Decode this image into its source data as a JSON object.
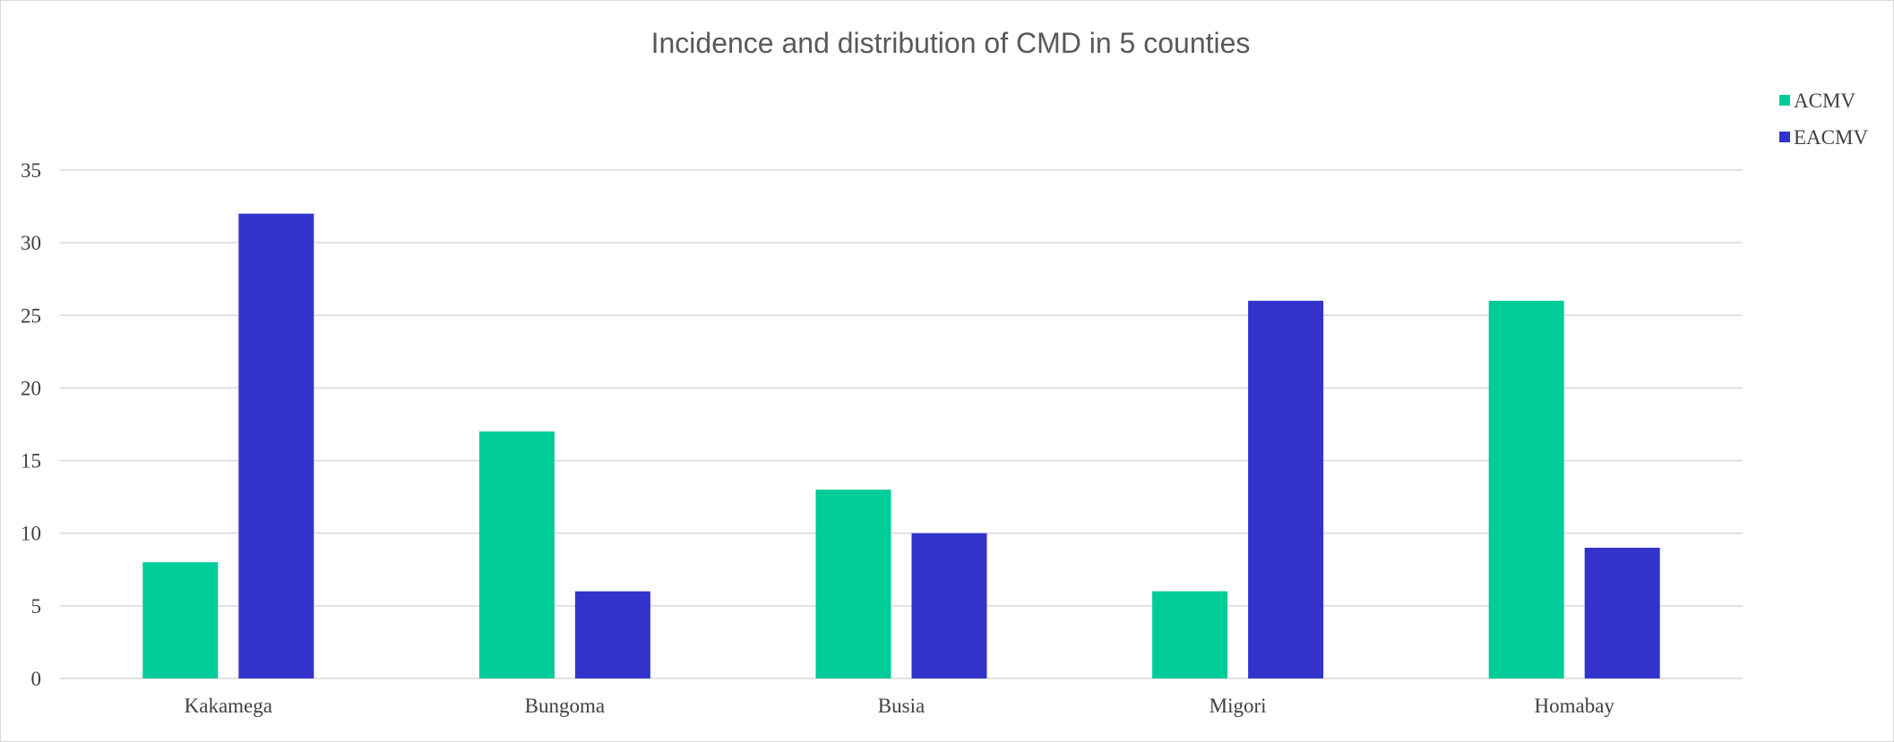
{
  "chart_data": {
    "type": "bar",
    "title": "Incidence and distribution of CMD in 5 counties",
    "xlabel": "",
    "ylabel": "",
    "categories": [
      "Kakamega",
      "Bungoma",
      "Busia",
      "Migori",
      "Homabay"
    ],
    "series": [
      {
        "name": "ACMV",
        "color": "#00CC99",
        "values": [
          8,
          17,
          13,
          6,
          26
        ]
      },
      {
        "name": "EACMV",
        "color": "#3333CC",
        "values": [
          32,
          6,
          10,
          26,
          9
        ]
      }
    ],
    "ylim": [
      0,
      35
    ],
    "yticks": [
      0,
      5,
      10,
      15,
      20,
      25,
      30,
      35
    ],
    "grid": true,
    "legend_position": "top-right"
  }
}
